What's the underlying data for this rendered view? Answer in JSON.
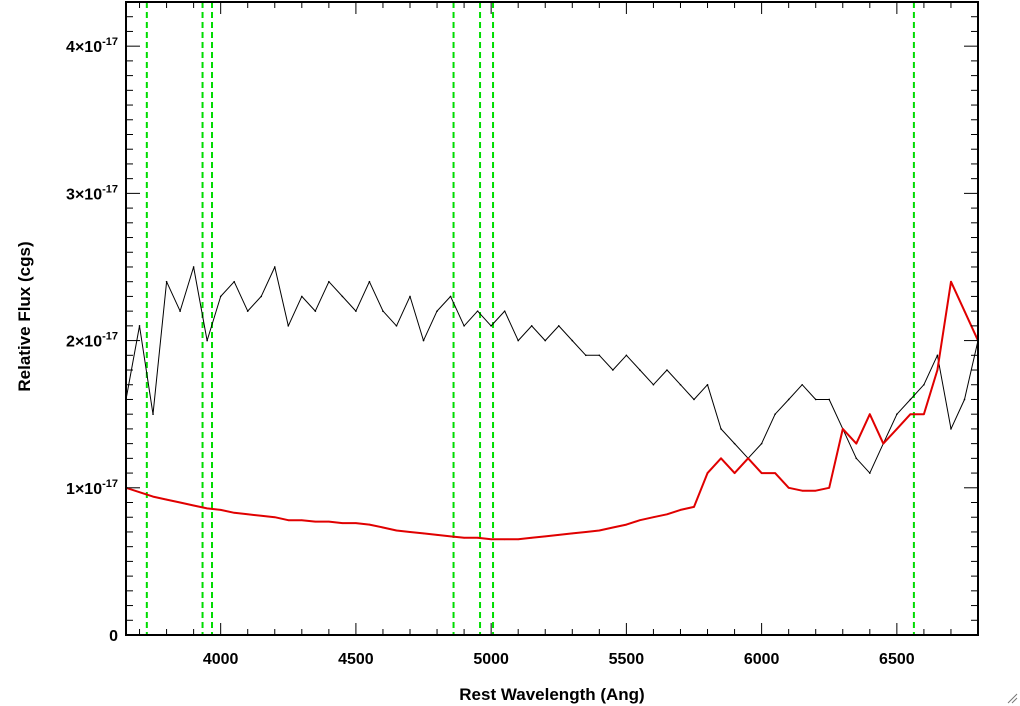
{
  "chart_data": {
    "type": "line",
    "title": "",
    "xlabel": "Rest Wavelength (Ang)",
    "ylabel": "Relative Flux (cgs)",
    "xlim": [
      3650,
      6800
    ],
    "ylim": [
      0,
      4.3e-17
    ],
    "x_ticks": [
      {
        "value": 4000,
        "label": "4000"
      },
      {
        "value": 4500,
        "label": "4500"
      },
      {
        "value": 5000,
        "label": "5000"
      },
      {
        "value": 5500,
        "label": "5500"
      },
      {
        "value": 6000,
        "label": "6000"
      },
      {
        "value": 6500,
        "label": "6500"
      }
    ],
    "y_ticks": [
      {
        "value": 0,
        "label": "0",
        "exp": ""
      },
      {
        "value": 1e-17,
        "label": "1×10",
        "exp": "-17"
      },
      {
        "value": 2e-17,
        "label": "2×10",
        "exp": "-17"
      },
      {
        "value": 3e-17,
        "label": "3×10",
        "exp": "-17"
      },
      {
        "value": 4e-17,
        "label": "4×10",
        "exp": "-17"
      }
    ],
    "series": [
      {
        "color": "#000000",
        "style": "solid",
        "x": [
          3650,
          3700,
          3750,
          3800,
          3850,
          3900,
          3950,
          4000,
          4050,
          4100,
          4150,
          4200,
          4250,
          4300,
          4350,
          4400,
          4450,
          4500,
          4550,
          4600,
          4650,
          4700,
          4750,
          4800,
          4850,
          4900,
          4950,
          5000,
          5050,
          5100,
          5150,
          5200,
          5250,
          5300,
          5350,
          5400,
          5450,
          5500,
          5550,
          5600,
          5650,
          5700,
          5750,
          5800,
          5850,
          5900,
          5950,
          6000,
          6050,
          6100,
          6150,
          6200,
          6250,
          6300,
          6350,
          6400,
          6450,
          6500,
          6550,
          6600,
          6650,
          6700,
          6750,
          6800
        ],
        "y": [
          1.6e-17,
          2.1e-17,
          1.5e-17,
          2.4e-17,
          2.2e-17,
          2.5e-17,
          2e-17,
          2.3e-17,
          2.4e-17,
          2.2e-17,
          2.3e-17,
          2.5e-17,
          2.1e-17,
          2.3e-17,
          2.2e-17,
          2.4e-17,
          2.3e-17,
          2.2e-17,
          2.4e-17,
          2.2e-17,
          2.1e-17,
          2.3e-17,
          2e-17,
          2.2e-17,
          2.3e-17,
          2.1e-17,
          2.2e-17,
          2.1e-17,
          2.2e-17,
          2e-17,
          2.1e-17,
          2e-17,
          2.1e-17,
          2e-17,
          1.9e-17,
          1.9e-17,
          1.8e-17,
          1.9e-17,
          1.8e-17,
          1.7e-17,
          1.8e-17,
          1.7e-17,
          1.6e-17,
          1.7e-17,
          1.4e-17,
          1.3e-17,
          1.2e-17,
          1.3e-17,
          1.5e-17,
          1.6e-17,
          1.7e-17,
          1.6e-17,
          1.6e-17,
          1.4e-17,
          1.2e-17,
          1.1e-17,
          1.3e-17,
          1.5e-17,
          1.6e-17,
          1.7e-17,
          1.9e-17,
          1.4e-17,
          1.6e-17,
          2e-17
        ]
      },
      {
        "color": "#e00000",
        "style": "solid",
        "x": [
          3650,
          3700,
          3750,
          3800,
          3850,
          3900,
          3950,
          4000,
          4050,
          4100,
          4150,
          4200,
          4250,
          4300,
          4350,
          4400,
          4450,
          4500,
          4550,
          4600,
          4650,
          4700,
          4750,
          4800,
          4850,
          4900,
          4950,
          5000,
          5050,
          5100,
          5150,
          5200,
          5250,
          5300,
          5350,
          5400,
          5450,
          5500,
          5550,
          5600,
          5650,
          5700,
          5750,
          5800,
          5850,
          5900,
          5950,
          6000,
          6050,
          6100,
          6150,
          6200,
          6250,
          6300,
          6350,
          6400,
          6450,
          6500,
          6550,
          6600,
          6650,
          6700,
          6750,
          6800
        ],
        "y": [
          1e-17,
          9.7e-18,
          9.4e-18,
          9.2e-18,
          9e-18,
          8.8e-18,
          8.6e-18,
          8.5e-18,
          8.3e-18,
          8.2e-18,
          8.1e-18,
          8e-18,
          7.8e-18,
          7.8e-18,
          7.7e-18,
          7.7e-18,
          7.6e-18,
          7.6e-18,
          7.5e-18,
          7.3e-18,
          7.1e-18,
          7e-18,
          6.9e-18,
          6.8e-18,
          6.7e-18,
          6.6e-18,
          6.6e-18,
          6.5e-18,
          6.5e-18,
          6.5e-18,
          6.6e-18,
          6.7e-18,
          6.8e-18,
          6.9e-18,
          7e-18,
          7.1e-18,
          7.3e-18,
          7.5e-18,
          7.8e-18,
          8e-18,
          8.2e-18,
          8.5e-18,
          8.7e-18,
          1.1e-17,
          1.2e-17,
          1.1e-17,
          1.2e-17,
          1.1e-17,
          1.1e-17,
          1e-17,
          9.8e-18,
          9.8e-18,
          1e-17,
          1.4e-17,
          1.3e-17,
          1.5e-17,
          1.3e-17,
          1.4e-17,
          1.5e-17,
          1.5e-17,
          1.8e-17,
          2.4e-17,
          2.2e-17,
          2e-17
        ]
      }
    ],
    "reference_lines": [
      {
        "x": 3727,
        "color": "#00dd00",
        "style": "dashed"
      },
      {
        "x": 3933,
        "color": "#00dd00",
        "style": "dashed"
      },
      {
        "x": 3968,
        "color": "#00dd00",
        "style": "dashed"
      },
      {
        "x": 4861,
        "color": "#00dd00",
        "style": "dashed"
      },
      {
        "x": 4959,
        "color": "#00dd00",
        "style": "dashed"
      },
      {
        "x": 5007,
        "color": "#00dd00",
        "style": "dashed"
      },
      {
        "x": 6563,
        "color": "#00dd00",
        "style": "dashed"
      }
    ],
    "grid": false,
    "legend": "none"
  },
  "window": {
    "resize_grip_icon": "resize-grip-icon"
  }
}
